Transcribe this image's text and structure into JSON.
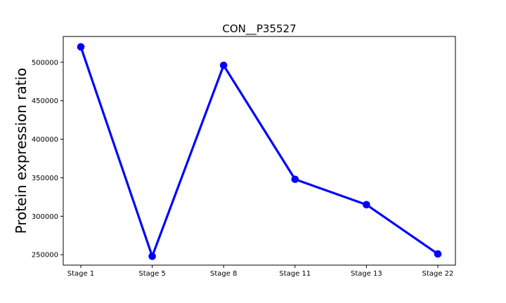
{
  "chart_data": {
    "type": "line",
    "title": "CON__P35527",
    "xlabel": "",
    "ylabel": "Protein expression ratio",
    "categories": [
      "Stage 1",
      "Stage 5",
      "Stage 8",
      "Stage 11",
      "Stage 13",
      "Stage 22"
    ],
    "series": [
      {
        "values": [
          520000,
          248000,
          496000,
          348000,
          315000,
          251000
        ],
        "color": "#0000ff",
        "marker": "circle"
      }
    ],
    "yticks": [
      250000,
      300000,
      350000,
      400000,
      450000,
      500000
    ],
    "ylim": [
      236500,
      533500
    ],
    "grid": false,
    "legend": "none"
  }
}
